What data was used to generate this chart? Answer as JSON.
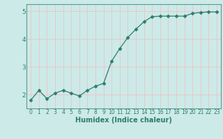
{
  "x": [
    0,
    1,
    2,
    3,
    4,
    5,
    6,
    7,
    8,
    9,
    10,
    11,
    12,
    13,
    14,
    15,
    16,
    17,
    18,
    19,
    20,
    21,
    22,
    23
  ],
  "y": [
    1.8,
    2.15,
    1.85,
    2.05,
    2.15,
    2.05,
    1.95,
    2.15,
    2.3,
    2.4,
    3.2,
    3.65,
    4.05,
    4.35,
    4.62,
    4.8,
    4.82,
    4.82,
    4.82,
    4.82,
    4.92,
    4.95,
    4.97,
    4.97
  ],
  "line_color": "#2d7d6e",
  "marker": "D",
  "marker_size": 2.5,
  "background_color": "#cceae8",
  "grid_color": "#e8c8c8",
  "xlabel": "Humidex (Indice chaleur)",
  "xlim": [
    -0.5,
    23.5
  ],
  "ylim": [
    1.5,
    5.25
  ],
  "yticks": [
    2,
    3,
    4,
    5
  ],
  "xtick_labels": [
    "0",
    "1",
    "2",
    "3",
    "4",
    "5",
    "6",
    "7",
    "8",
    "9",
    "10",
    "11",
    "12",
    "13",
    "14",
    "15",
    "16",
    "17",
    "18",
    "19",
    "20",
    "21",
    "22",
    "23"
  ],
  "tick_color": "#2d7d6e",
  "xlabel_color": "#2d7d6e",
  "spine_color": "#5a9a90"
}
